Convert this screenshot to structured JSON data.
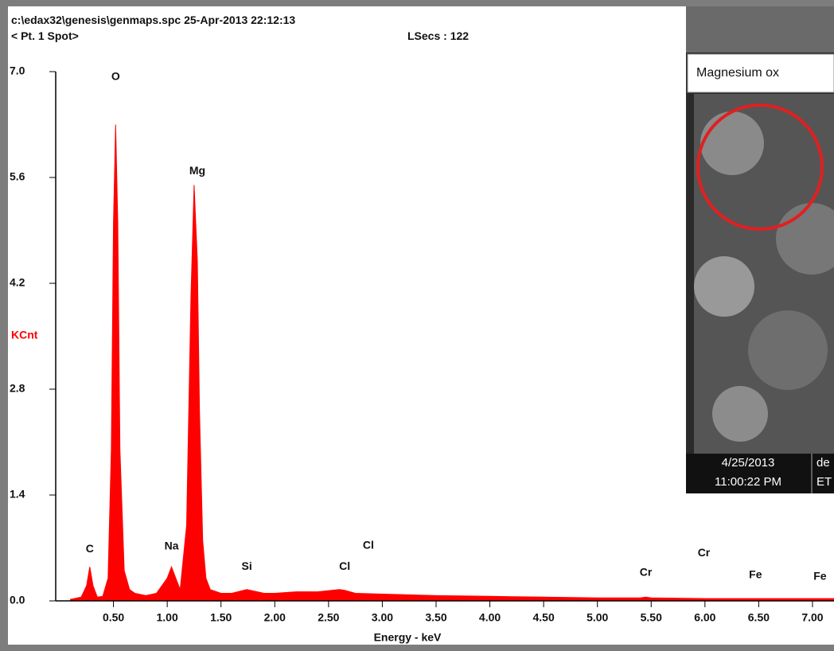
{
  "chart_data": {
    "type": "area",
    "header": [
      "c:\\edax32\\genesis\\genmaps.spc  25-Apr-2013 22:12:13",
      "< Pt.  1 Spot>",
      "LSecs : 122"
    ],
    "x_label": "Energy - keV",
    "y_label": "KCnt",
    "color": "#ff0000",
    "x": [
      0.1,
      0.2,
      0.25,
      0.28,
      0.31,
      0.35,
      0.4,
      0.45,
      0.48,
      0.5,
      0.52,
      0.54,
      0.56,
      0.6,
      0.65,
      0.7,
      0.8,
      0.9,
      1.0,
      1.04,
      1.08,
      1.12,
      1.18,
      1.22,
      1.25,
      1.28,
      1.3,
      1.33,
      1.36,
      1.4,
      1.5,
      1.6,
      1.74,
      1.9,
      2.0,
      2.2,
      2.4,
      2.6,
      2.65,
      2.75,
      3.0,
      3.5,
      4.0,
      4.5,
      5.0,
      5.4,
      5.45,
      5.5,
      6.0,
      6.5,
      7.0,
      7.2
    ],
    "values": [
      0.02,
      0.05,
      0.2,
      0.45,
      0.2,
      0.05,
      0.06,
      0.3,
      2.0,
      5.0,
      6.3,
      5.0,
      2.0,
      0.4,
      0.15,
      0.1,
      0.07,
      0.1,
      0.3,
      0.45,
      0.3,
      0.15,
      1.0,
      4.0,
      5.5,
      4.5,
      2.5,
      0.8,
      0.3,
      0.15,
      0.1,
      0.1,
      0.15,
      0.1,
      0.1,
      0.12,
      0.12,
      0.15,
      0.14,
      0.1,
      0.09,
      0.07,
      0.06,
      0.05,
      0.04,
      0.04,
      0.05,
      0.04,
      0.03,
      0.03,
      0.03,
      0.03
    ],
    "xlim": [
      0,
      7.2
    ],
    "ylim": [
      0,
      7.0
    ],
    "xticks": [
      {
        "value": 0.5,
        "label": "0.50"
      },
      {
        "value": 1,
        "label": "1.00"
      },
      {
        "value": 1.5,
        "label": "1.50"
      },
      {
        "value": 2,
        "label": "2.00"
      },
      {
        "value": 2.5,
        "label": "2.50"
      },
      {
        "value": 3,
        "label": "3.00"
      },
      {
        "value": 3.5,
        "label": "3.50"
      },
      {
        "value": 4,
        "label": "4.00"
      },
      {
        "value": 4.5,
        "label": "4.50"
      },
      {
        "value": 5,
        "label": "5.00"
      },
      {
        "value": 5.5,
        "label": "5.50"
      },
      {
        "value": 6,
        "label": "6.00"
      },
      {
        "value": 6.5,
        "label": "6.50"
      },
      {
        "value": 7,
        "label": "7.00"
      }
    ],
    "yticks": [
      {
        "value": 0,
        "label": "0.0"
      },
      1.4,
      2.8,
      4.2,
      5.6,
      {
        "value": 7,
        "label": "7.0"
      }
    ],
    "annotations": [
      {
        "text": "O",
        "x": 0.52,
        "y": 6.93
      },
      {
        "text": "Mg",
        "x": 1.28,
        "y": 5.68
      },
      {
        "text": "C",
        "x": 0.28,
        "y": 0.68
      },
      {
        "text": "Na",
        "x": 1.04,
        "y": 0.72
      },
      {
        "text": "Si",
        "x": 1.74,
        "y": 0.45
      },
      {
        "text": "Cl",
        "x": 2.65,
        "y": 0.45
      },
      {
        "text": "Cl",
        "x": 2.87,
        "y": 0.73
      },
      {
        "text": "Cr",
        "x": 5.45,
        "y": 0.37
      },
      {
        "text": "Cr",
        "x": 5.99,
        "y": 0.63
      },
      {
        "text": "Fe",
        "x": 6.47,
        "y": 0.34
      },
      {
        "text": "Fe",
        "x": 7.07,
        "y": 0.32
      }
    ]
  },
  "inset": {
    "caption": "Magnesium ox",
    "date": "4/25/2013",
    "time": "11:00:22 PM",
    "col2_top": "de",
    "col2_bottom": "ET"
  }
}
